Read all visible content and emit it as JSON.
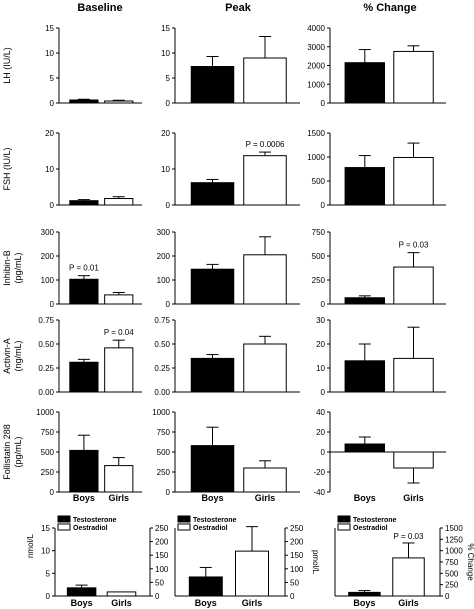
{
  "chart_data": {
    "type": "bar",
    "column_titles": [
      "Baseline",
      "Peak",
      "% Change"
    ],
    "categories": [
      "Boys",
      "Girls"
    ],
    "row_labels": [
      "LH (IU/L)",
      "FSH (IU/L)",
      "Inhibin-B (pg/mL)",
      "Activin-A (ng/mL)",
      "Follistatin 288 (pg/mL)"
    ],
    "panels": [
      {
        "row": 0,
        "col": 0,
        "ylim": [
          0,
          15
        ],
        "yticks": [
          "0",
          "5",
          "10",
          "15"
        ],
        "values": [
          0.6,
          0.4
        ],
        "errors": [
          0.15,
          0.15
        ],
        "annotation": ""
      },
      {
        "row": 0,
        "col": 1,
        "ylim": [
          0,
          15
        ],
        "yticks": [
          "0",
          "5",
          "10",
          "15"
        ],
        "values": [
          7.3,
          9.0
        ],
        "errors": [
          2.0,
          4.3
        ],
        "annotation": ""
      },
      {
        "row": 0,
        "col": 2,
        "ylim": [
          0,
          4000
        ],
        "yticks": [
          "0",
          "1000",
          "2000",
          "3000",
          "4000"
        ],
        "values": [
          2150,
          2750
        ],
        "errors": [
          700,
          300
        ],
        "annotation": ""
      },
      {
        "row": 1,
        "col": 0,
        "ylim": [
          0,
          20
        ],
        "yticks": [
          "0",
          "10",
          "20"
        ],
        "values": [
          1.2,
          1.8
        ],
        "errors": [
          0.3,
          0.5
        ],
        "annotation": ""
      },
      {
        "row": 1,
        "col": 1,
        "ylim": [
          0,
          20
        ],
        "yticks": [
          "0",
          "10",
          "20"
        ],
        "values": [
          6.2,
          13.7
        ],
        "errors": [
          0.9,
          1.0
        ],
        "annotation": "P = 0.0006",
        "annotation_bar": 1
      },
      {
        "row": 1,
        "col": 2,
        "ylim": [
          0,
          1500
        ],
        "yticks": [
          "0",
          "500",
          "1000",
          "1500"
        ],
        "values": [
          780,
          990
        ],
        "errors": [
          250,
          300
        ],
        "annotation": ""
      },
      {
        "row": 2,
        "col": 0,
        "ylim": [
          0,
          300
        ],
        "yticks": [
          "0",
          "100",
          "200",
          "300"
        ],
        "values": [
          103,
          38
        ],
        "errors": [
          15,
          10
        ],
        "annotation": "P = 0.01",
        "annotation_bar": 0
      },
      {
        "row": 2,
        "col": 1,
        "ylim": [
          0,
          300
        ],
        "yticks": [
          "0",
          "100",
          "200",
          "300"
        ],
        "values": [
          145,
          205
        ],
        "errors": [
          20,
          75
        ],
        "annotation": ""
      },
      {
        "row": 2,
        "col": 2,
        "ylim": [
          0,
          750
        ],
        "yticks": [
          "0",
          "250",
          "500",
          "750"
        ],
        "values": [
          65,
          385
        ],
        "errors": [
          20,
          150
        ],
        "annotation": "P = 0.03",
        "annotation_bar": 1
      },
      {
        "row": 3,
        "col": 0,
        "ylim": [
          0,
          0.75
        ],
        "yticks": [
          "0.00",
          "0.25",
          "0.50",
          "0.75"
        ],
        "values": [
          0.31,
          0.46
        ],
        "errors": [
          0.03,
          0.08
        ],
        "annotation": "P = 0.04",
        "annotation_bar": 1
      },
      {
        "row": 3,
        "col": 1,
        "ylim": [
          0,
          0.75
        ],
        "yticks": [
          "0.00",
          "0.25",
          "0.50",
          "0.75"
        ],
        "values": [
          0.35,
          0.5
        ],
        "errors": [
          0.04,
          0.08
        ],
        "annotation": ""
      },
      {
        "row": 3,
        "col": 2,
        "ylim": [
          0,
          30
        ],
        "yticks": [
          "0",
          "10",
          "20",
          "30"
        ],
        "values": [
          13,
          14
        ],
        "errors": [
          7,
          13
        ],
        "annotation": ""
      },
      {
        "row": 4,
        "col": 0,
        "ylim": [
          0,
          1000
        ],
        "yticks": [
          "0",
          "250",
          "500",
          "750",
          "1000"
        ],
        "values": [
          520,
          330
        ],
        "errors": [
          190,
          100
        ],
        "annotation": ""
      },
      {
        "row": 4,
        "col": 1,
        "ylim": [
          0,
          1000
        ],
        "yticks": [
          "0",
          "250",
          "500",
          "750",
          "1000"
        ],
        "values": [
          580,
          300
        ],
        "errors": [
          230,
          90
        ],
        "annotation": ""
      },
      {
        "row": 4,
        "col": 2,
        "ylim": [
          -40,
          40
        ],
        "yticks": [
          "-40",
          "-20",
          "0",
          "20",
          "40"
        ],
        "values": [
          8,
          -16
        ],
        "errors": [
          7,
          15
        ],
        "annotation": ""
      }
    ],
    "bottom_panels": [
      {
        "left_label": "nmol/L",
        "right_label": "",
        "left_ticks": [
          "0",
          "5",
          "10",
          "15"
        ],
        "right_ticks": [
          "0",
          "50",
          "100",
          "150",
          "200",
          "250"
        ],
        "right_max": 250,
        "values": [
          30,
          15
        ],
        "errors": [
          10,
          0
        ],
        "annotation": "",
        "legend": [
          "Testosterone",
          "Oestradiol"
        ]
      },
      {
        "left_label": "",
        "right_label": "pmol/L",
        "left_ticks": [],
        "right_ticks": [
          "0",
          "50",
          "100",
          "150",
          "200",
          "250"
        ],
        "right_max": 250,
        "values": [
          70,
          165
        ],
        "errors": [
          35,
          90
        ],
        "annotation": "",
        "legend": [
          "Testosterone",
          "Oestradiol"
        ]
      },
      {
        "left_label": "",
        "right_label": "% Change",
        "left_ticks": [],
        "right_ticks": [
          "0",
          "250",
          "500",
          "750",
          "1000",
          "1250",
          "1500"
        ],
        "right_max": 1500,
        "values": [
          80,
          840
        ],
        "errors": [
          40,
          330
        ],
        "annotation": "P = 0.03",
        "legend": [
          "Testosterone",
          "Oestradiol"
        ]
      }
    ]
  }
}
